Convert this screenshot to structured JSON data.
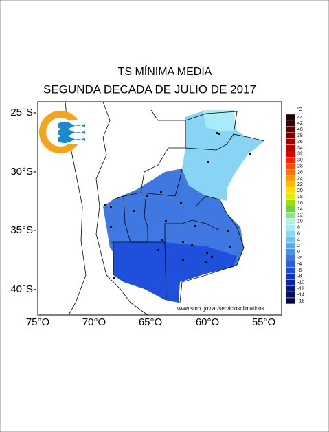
{
  "title": "TS MÍNIMA MEDIA",
  "subtitle": "SEGUNDA DECADA DE JULIO DE 2017",
  "lat_labels": [
    "25°S-",
    "30°S-",
    "35°S-",
    "40°S-"
  ],
  "lon_labels": [
    "75°O",
    "70°O",
    "65°O",
    "60°O",
    "55°O"
  ],
  "credit": "www.smn.gov.ar/serviciosclimaticos",
  "legend": {
    "unit": "°C",
    "levels": [
      {
        "label": "44",
        "color": "#1a0000"
      },
      {
        "label": "42",
        "color": "#3a0000"
      },
      {
        "label": "40",
        "color": "#5c0000"
      },
      {
        "label": "38",
        "color": "#800000"
      },
      {
        "label": "36",
        "color": "#a00000"
      },
      {
        "label": "34",
        "color": "#c00000"
      },
      {
        "label": "32",
        "color": "#e00000"
      },
      {
        "label": "30",
        "color": "#ff2000"
      },
      {
        "label": "28",
        "color": "#ff4a00"
      },
      {
        "label": "26",
        "color": "#ff7000"
      },
      {
        "label": "24",
        "color": "#ff9600"
      },
      {
        "label": "22",
        "color": "#ffbe00"
      },
      {
        "label": "20",
        "color": "#ffe000"
      },
      {
        "label": "18",
        "color": "#d8f000"
      },
      {
        "label": "16",
        "color": "#a0e000"
      },
      {
        "label": "14",
        "color": "#70d040"
      },
      {
        "label": "12",
        "color": "#90e090"
      },
      {
        "label": "10",
        "color": "#b8f0e0"
      },
      {
        "label": "8",
        "color": "#a8ecf8"
      },
      {
        "label": "6",
        "color": "#88d8f4"
      },
      {
        "label": "4",
        "color": "#70c4f0"
      },
      {
        "label": "2",
        "color": "#5aa8ec"
      },
      {
        "label": "0",
        "color": "#4890e8"
      },
      {
        "label": "-2",
        "color": "#3a78e4"
      },
      {
        "label": "-4",
        "color": "#2a60e0"
      },
      {
        "label": "-6",
        "color": "#1c48d8"
      },
      {
        "label": "-8",
        "color": "#1234c0"
      },
      {
        "label": "-10",
        "color": "#0a24a0"
      },
      {
        "label": "-12",
        "color": "#061880"
      },
      {
        "label": "-14",
        "color": "#041060"
      },
      {
        "label": "-16",
        "color": "#020840"
      }
    ]
  }
}
